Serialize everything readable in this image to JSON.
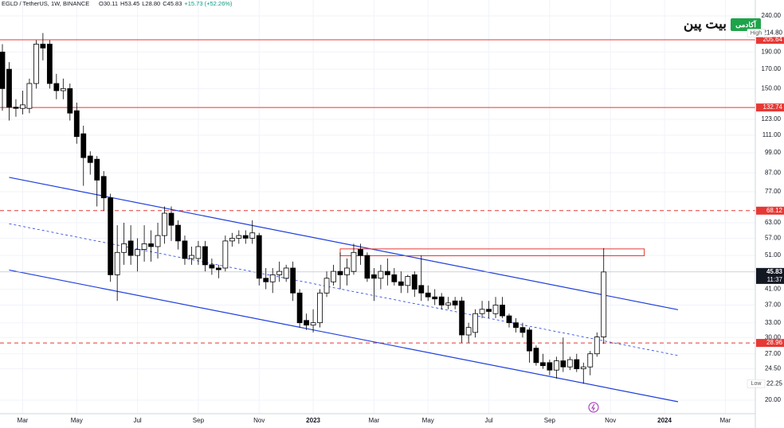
{
  "chart_data": {
    "type": "candlestick",
    "title": "EGLD / TetherUS, 1W, BINANCE",
    "ohlc_text": [
      "O30.11",
      "H53.45",
      "L28.80",
      "C45.83",
      "+15.73 (+52.26%)"
    ],
    "brand": {
      "name": "بیت پین",
      "badge": "آکادمی"
    },
    "log_scale": true,
    "grid": true,
    "categories": [
      null,
      null,
      null,
      "Mar",
      null,
      null,
      null,
      null,
      null,
      null,
      null,
      "May",
      null,
      null,
      null,
      null,
      null,
      null,
      null,
      null,
      "Jul",
      null,
      null,
      null,
      null,
      null,
      null,
      null,
      null,
      "Sep",
      null,
      null,
      null,
      null,
      null,
      null,
      null,
      null,
      "Nov",
      null,
      null,
      null,
      null,
      null,
      null,
      null,
      "2023",
      null,
      null,
      null,
      null,
      null,
      null,
      null,
      null,
      "Mar",
      null,
      null,
      null,
      null,
      null,
      null,
      null,
      "May",
      null,
      null,
      null,
      null,
      null,
      null,
      null,
      null,
      "Jul",
      null,
      null,
      null,
      null,
      null,
      null,
      null,
      null,
      "Sep",
      null,
      null,
      null,
      null,
      null,
      null,
      null,
      null,
      "Nov",
      null,
      null,
      null,
      null,
      null,
      null,
      null,
      "2024",
      null,
      null,
      null,
      null,
      null,
      null,
      null,
      null,
      "Mar",
      null,
      null,
      null
    ],
    "series": [
      {
        "name": "EGLD / TetherUS",
        "up_color": "#ffffff",
        "down_color": "#000000",
        "border_color": "#000000",
        "open": [
          190,
          170,
          133,
          132,
          132,
          155,
          200,
          200,
          155,
          148,
          150,
          130,
          112,
          97,
          95,
          85,
          74,
          45,
          52,
          56,
          51,
          53,
          55,
          54,
          58,
          67,
          62,
          56,
          50,
          50,
          54,
          48,
          47,
          47,
          56,
          57,
          58,
          57,
          58,
          44,
          43,
          45,
          44,
          47,
          40,
          33.5,
          32.5,
          33,
          40,
          43,
          46,
          45,
          46,
          53,
          51,
          45,
          44,
          46,
          45,
          43,
          42,
          45,
          42,
          40,
          39,
          39,
          37,
          38,
          38,
          30.5,
          31,
          35,
          36,
          35,
          37,
          34.5,
          33,
          32,
          31.5,
          28,
          25.5,
          25.5,
          24.3,
          25.8,
          24.8,
          26,
          24.5,
          24.8,
          27,
          30.11,
          null,
          null,
          null,
          null,
          null,
          null,
          null,
          null,
          null,
          null,
          null,
          null,
          null,
          null,
          null,
          null,
          null,
          null,
          null,
          null,
          null
        ],
        "high": [
          200,
          178,
          140,
          148,
          160,
          205,
          214.8,
          205,
          165,
          160,
          155,
          137,
          118,
          100,
          97,
          88,
          76,
          62,
          63,
          62,
          57,
          62,
          60,
          63,
          70,
          70,
          64,
          58,
          54,
          56,
          56,
          50,
          48,
          58,
          59,
          60,
          60,
          64,
          59,
          47,
          47,
          49,
          48,
          49,
          41,
          35,
          36,
          41,
          46,
          48,
          52,
          50,
          55,
          55,
          52,
          47,
          48,
          50,
          47,
          46,
          45,
          46,
          51,
          42,
          41,
          40,
          39,
          39,
          39,
          33,
          36,
          38,
          38,
          39,
          39,
          35,
          34,
          33,
          32,
          28.5,
          27,
          26,
          26.5,
          30,
          26.5,
          27,
          25.5,
          27.5,
          31,
          53.45,
          null,
          null,
          null,
          null,
          null,
          null,
          null,
          null,
          null,
          null,
          null,
          null,
          null,
          null,
          null,
          null,
          null,
          null,
          null,
          null,
          null
        ],
        "low": [
          130,
          122,
          125,
          127,
          128,
          150,
          180,
          150,
          140,
          140,
          122,
          105,
          80,
          86,
          70,
          68,
          43,
          38,
          48,
          48,
          46,
          49,
          49,
          50,
          55,
          56,
          53,
          48,
          48,
          48,
          46,
          45,
          44,
          46,
          54,
          55,
          55,
          55,
          42,
          41,
          40,
          43,
          43,
          38,
          32,
          31.5,
          31,
          32,
          39,
          42,
          41,
          42,
          45,
          48,
          43,
          38,
          41,
          42,
          42,
          40,
          40,
          39,
          38,
          38,
          37,
          36,
          36,
          36,
          29,
          29,
          30,
          34,
          34,
          34,
          34,
          32,
          31,
          30,
          25.5,
          25,
          24.5,
          23.5,
          23,
          24,
          24.3,
          24,
          22.25,
          23.5,
          26.5,
          28.8,
          null,
          null,
          null,
          null,
          null,
          null,
          null,
          null,
          null,
          null,
          null,
          null,
          null,
          null,
          null,
          null,
          null,
          null,
          null,
          null,
          null
        ],
        "close": [
          150,
          133,
          132,
          135,
          155,
          200,
          195,
          155,
          148,
          150,
          128,
          110,
          96,
          93,
          83,
          74,
          45,
          52,
          55,
          51,
          53,
          55,
          54,
          58,
          67,
          62,
          56,
          50,
          51,
          54,
          48,
          47,
          46.5,
          56,
          57,
          58,
          57,
          59,
          44,
          43,
          45,
          46,
          47,
          40,
          33,
          32.5,
          33,
          40,
          44,
          46,
          45,
          47,
          52,
          51,
          44,
          44,
          46,
          45,
          43,
          42,
          44.5,
          41,
          40,
          39,
          38.5,
          37,
          37.5,
          37,
          30.5,
          32,
          35,
          36,
          35.5,
          37,
          34.5,
          33,
          32,
          31,
          27.5,
          25.5,
          25,
          24.3,
          25.8,
          24.8,
          26,
          24.5,
          24.8,
          27,
          30.1,
          45.83,
          null,
          null,
          null,
          null,
          null,
          null,
          null,
          null,
          null,
          null,
          null,
          null,
          null,
          null,
          null,
          null,
          null,
          null,
          null,
          null,
          null
        ]
      }
    ],
    "ylim": [
      18.33,
      266
    ],
    "yticks": [
      {
        "value": 240,
        "label": "240.00"
      },
      {
        "value": 190,
        "label": "190.00"
      },
      {
        "value": 170,
        "label": "170.00"
      },
      {
        "value": 150,
        "label": "150.00"
      },
      {
        "value": 123,
        "label": "123.00"
      },
      {
        "value": 111,
        "label": "111.00"
      },
      {
        "value": 99,
        "label": "99.00"
      },
      {
        "value": 87,
        "label": "87.00"
      },
      {
        "value": 77,
        "label": "77.00"
      },
      {
        "value": 63,
        "label": "63.00"
      },
      {
        "value": 57,
        "label": "57.00"
      },
      {
        "value": 51,
        "label": "51.00"
      },
      {
        "value": 41,
        "label": "41.00"
      },
      {
        "value": 37,
        "label": "37.00"
      },
      {
        "value": 33,
        "label": "33.00"
      },
      {
        "value": 30,
        "label": "30.00"
      },
      {
        "value": 27,
        "label": "27.00"
      },
      {
        "value": 24.5,
        "label": "24.50"
      },
      {
        "value": 20,
        "label": "20.00"
      }
    ],
    "levels": [
      {
        "value": 205.64,
        "label": "205.64",
        "style": "solid",
        "color": "#e53935"
      },
      {
        "value": 132.74,
        "label": "132.74",
        "style": "solid",
        "color": "#e53935"
      },
      {
        "value": 68.12,
        "label": "68.12",
        "style": "dashed",
        "color": "#e53935"
      },
      {
        "value": 28.96,
        "label": "28.96",
        "style": "dashed",
        "color": "#e53935"
      }
    ],
    "extremes": [
      {
        "value": 214.8,
        "label": "214.80",
        "tag": "High"
      },
      {
        "value": 22.25,
        "label": "22.25",
        "tag": "Low"
      }
    ],
    "last_price": {
      "value": 45.83,
      "label": "45.83",
      "countdown": "11:37",
      "color": "#131722"
    },
    "trend_lines": [
      {
        "x": [
          1,
          100
        ],
        "y": [
          84.5,
          35.9
        ],
        "style": "solid",
        "color": "#1f3fdc"
      },
      {
        "x": [
          1,
          100
        ],
        "y": [
          62.6,
          26.7
        ],
        "style": "dashed",
        "color": "#1f3fdc"
      },
      {
        "x": [
          1,
          100
        ],
        "y": [
          46.4,
          19.8
        ],
        "style": "solid",
        "color": "#1f3fdc"
      }
    ],
    "zone": {
      "x": [
        50,
        95
      ],
      "y": [
        50.9,
        53.2
      ],
      "color": "#e53935"
    }
  }
}
